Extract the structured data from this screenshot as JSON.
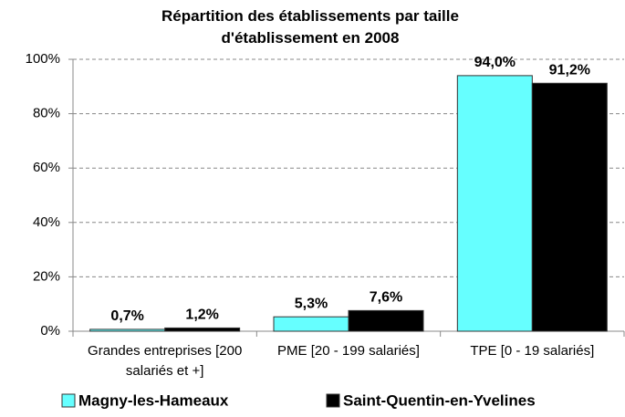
{
  "chart_data": {
    "type": "bar",
    "title": "Répartition des établissements par taille d'établissement en 2008",
    "categories": [
      "Grandes entreprises [200 salariés et +]",
      "PME [20 - 199 salariés]",
      "TPE [0 - 19 salariés]"
    ],
    "series": [
      {
        "name": "Magny-les-Hameaux",
        "color": "#66ffff",
        "values": [
          0.7,
          5.3,
          94.0
        ],
        "value_labels": [
          "0,7%",
          "5,3%",
          "94,0%"
        ]
      },
      {
        "name": "Saint-Quentin-en-Yvelines",
        "color": "#000000",
        "values": [
          1.2,
          7.6,
          91.2
        ],
        "value_labels": [
          "1,2%",
          "7,6%",
          "91,2%"
        ]
      }
    ],
    "ylim": [
      0,
      100
    ],
    "yticks": [
      {
        "value": 0,
        "label": "0%"
      },
      {
        "value": 20,
        "label": "20%"
      },
      {
        "value": 40,
        "label": "40%"
      },
      {
        "value": 60,
        "label": "60%"
      },
      {
        "value": 80,
        "label": "80%"
      },
      {
        "value": 100,
        "label": "100%"
      }
    ],
    "grid": true,
    "legend": "bottom"
  }
}
